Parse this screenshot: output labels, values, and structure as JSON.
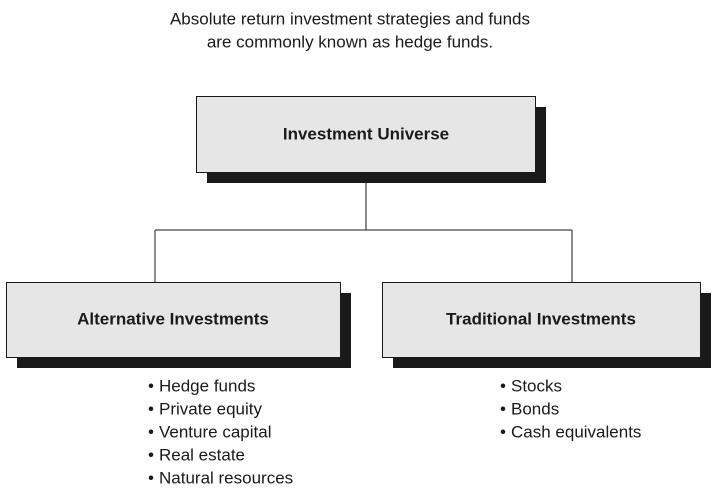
{
  "caption": [
    "Absolute return investment strategies and funds",
    "are commonly known as hedge funds."
  ],
  "root": {
    "label": "Investment Universe"
  },
  "children": [
    {
      "label": "Alternative Investments",
      "items": [
        "Hedge funds",
        "Private equity",
        "Venture capital",
        "Real estate",
        "Natural resources"
      ]
    },
    {
      "label": "Traditional Investments",
      "items": [
        "Stocks",
        "Bonds",
        "Cash equivalents"
      ]
    }
  ]
}
